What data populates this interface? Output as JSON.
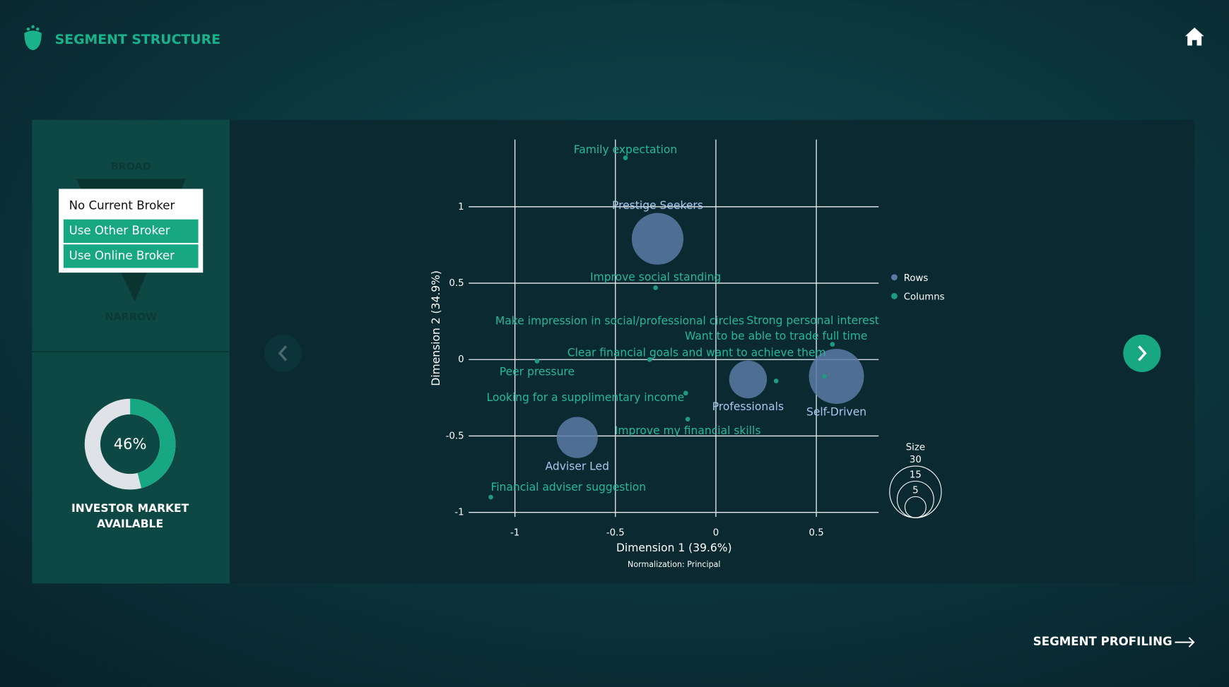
{
  "header": {
    "title": "SEGMENT STRUCTURE"
  },
  "filter": {
    "top_label": "BROAD",
    "bottom_label": "NARROW",
    "options": [
      {
        "label": "No Current Broker",
        "selected": false
      },
      {
        "label": "Use Other Broker",
        "selected": true
      },
      {
        "label": "Use Online Broker",
        "selected": true
      }
    ]
  },
  "market": {
    "value": 46,
    "value_label": "46%",
    "label": "INVESTOR MARKET AVAILABLE"
  },
  "chart_data": {
    "type": "scatter",
    "xlabel": "Dimension 1 (39.6%)",
    "ylabel": "Dimension 2 (34.9%)",
    "note": "Normalization: Principal",
    "xlim": [
      -1.23,
      0.81
    ],
    "ylim": [
      -1.03,
      1.44
    ],
    "xticks": [
      -1,
      -0.5,
      0,
      0.5
    ],
    "yticks": [
      -1,
      -0.5,
      0,
      0.5,
      1
    ],
    "grid": true,
    "series": [
      {
        "name": "Rows",
        "color": "#5a7aa6",
        "label_color": "#a9c6ef",
        "labels": [
          "Prestige Seekers",
          "Professionals",
          "Self-Driven",
          "Adviser Led"
        ],
        "x": [
          -0.29,
          0.16,
          0.6,
          -0.69
        ],
        "values": [
          0.79,
          -0.13,
          -0.11,
          -0.51
        ],
        "sizes": [
          30,
          16,
          34,
          19
        ]
      },
      {
        "name": "Columns",
        "color": "#1f9a84",
        "label_color": "#27b89a",
        "labels": [
          "Family expectation",
          "Improve social standing",
          "Make impression in social/professional circles",
          "Clear financial goals and want to achieve them",
          "Strong personal interest",
          "Want to be able to trade full time",
          "Peer pressure",
          "Looking for a supplimentary income",
          "Improve my financial skills",
          "Financial adviser suggestion"
        ],
        "x": [
          -0.45,
          -0.3,
          -0.33,
          0.54,
          0.58,
          0.3,
          -0.89,
          -0.15,
          -0.14,
          -1.12
        ],
        "values": [
          1.32,
          0.47,
          0.0,
          -0.11,
          0.1,
          -0.14,
          -0.01,
          -0.22,
          -0.39,
          -0.9
        ]
      }
    ],
    "size_legend": {
      "title": "Size",
      "values": [
        30,
        15,
        5
      ]
    }
  },
  "footer": {
    "next": "SEGMENT PROFILING"
  }
}
